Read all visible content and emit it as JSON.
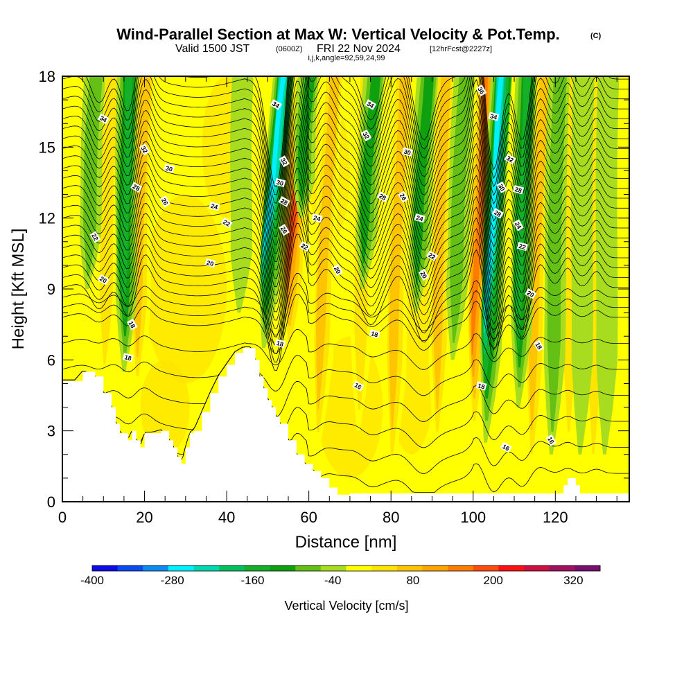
{
  "title": {
    "main": "Wind-Parallel Section at Max W: Vertical Velocity & Pot.Temp.",
    "copyright": "(C)",
    "valid_prefix": "Valid 1500 JST",
    "valid_utc": "(0600Z)",
    "valid_date": "FRI 22 Nov 2024",
    "forecast": "[12hrFcst@2227z]",
    "indices": "i,j,k,angle=92,59,24,99"
  },
  "colorbar": {
    "title": "Vertical Velocity [cm/s]",
    "tick_labels": [
      "-400",
      "-280",
      "-160",
      "-40",
      "80",
      "200",
      "320"
    ],
    "tick_values": [
      -400,
      -280,
      -160,
      -40,
      80,
      200,
      320
    ],
    "min": -400,
    "max": 360,
    "step": 40,
    "colors": [
      "#0c0ce8",
      "#0a4cf2",
      "#0a8ef5",
      "#00f0ff",
      "#00d8b0",
      "#00c060",
      "#14b028",
      "#0fa010",
      "#64c014",
      "#a8dc1e",
      "#ffff00",
      "#ffe400",
      "#ffc400",
      "#ffa500",
      "#ff7c00",
      "#ff4c0c",
      "#ff1010",
      "#cc1040",
      "#a01060",
      "#780e6e"
    ]
  },
  "chart_data": {
    "type": "heatmap",
    "description_of_fields": "shaded = vertical velocity (cm/s); contours = potential temperature",
    "xlabel": "Distance [nm]",
    "ylabel": "Height [Kft MSL]",
    "xlim": [
      0,
      138
    ],
    "ylim": [
      0,
      18
    ],
    "x_ticks": [
      0,
      20,
      40,
      60,
      80,
      100,
      120
    ],
    "y_ticks": [
      0,
      3,
      6,
      9,
      12,
      15,
      18
    ],
    "terrain": {
      "x": [
        0,
        3,
        5,
        8,
        10,
        12,
        13,
        14,
        16,
        17,
        18,
        19,
        20,
        22,
        24,
        26,
        27,
        28,
        29,
        30,
        31,
        32,
        34,
        36,
        38,
        40,
        42,
        44,
        46,
        47,
        48,
        49,
        50,
        51,
        52,
        53,
        55,
        57,
        59,
        61,
        63,
        65,
        67,
        69,
        70,
        72,
        80,
        90,
        100,
        110,
        121,
        122,
        123,
        124,
        125,
        126,
        128,
        130,
        138
      ],
      "height": [
        5.1,
        5.1,
        5.5,
        5.3,
        4.6,
        4.0,
        3.3,
        2.9,
        2.6,
        3.0,
        2.6,
        2.3,
        2.9,
        2.9,
        3.0,
        2.6,
        2.3,
        1.9,
        1.6,
        2.3,
        2.9,
        3.0,
        3.8,
        4.6,
        5.3,
        5.8,
        6.3,
        6.5,
        6.5,
        6.0,
        5.3,
        4.8,
        4.3,
        4.0,
        3.6,
        3.3,
        2.6,
        2.0,
        1.6,
        1.3,
        1.0,
        0.6,
        0.3,
        0.3,
        0.35,
        0.35,
        0.35,
        0.35,
        0.35,
        0.35,
        0.35,
        0.7,
        1.0,
        1.0,
        0.7,
        0.35,
        0.35,
        0.35,
        0.35
      ]
    },
    "updraft_bands": [
      {
        "x_top": 59,
        "x_bottom": 55,
        "z_top": 18,
        "z_bottom": 6.0,
        "peak_cm_s": 240
      },
      {
        "x_top": 103,
        "x_bottom": 100,
        "z_top": 18,
        "z_bottom": 2.5,
        "peak_cm_s": 200
      },
      {
        "x_top": 20,
        "x_bottom": 18,
        "z_top": 18,
        "z_bottom": 4.5,
        "peak_cm_s": 120
      },
      {
        "x_top": 12,
        "x_bottom": 10,
        "z_top": 18,
        "z_bottom": 5.0,
        "peak_cm_s": 100
      },
      {
        "x_top": 66,
        "x_bottom": 62,
        "z_top": 18,
        "z_bottom": 2.0,
        "peak_cm_s": 120
      },
      {
        "x_top": 83,
        "x_bottom": 80,
        "z_top": 18,
        "z_bottom": 1.0,
        "peak_cm_s": 140
      },
      {
        "x_top": 93,
        "x_bottom": 91,
        "z_top": 18,
        "z_bottom": 2.0,
        "peak_cm_s": 140
      },
      {
        "x_top": 117,
        "x_bottom": 114,
        "z_top": 18,
        "z_bottom": 1.0,
        "peak_cm_s": 130
      },
      {
        "x_top": 124,
        "x_bottom": 123,
        "z_top": 18,
        "z_bottom": 2.0,
        "peak_cm_s": 100
      },
      {
        "x_top": 130,
        "x_bottom": 129,
        "z_top": 18,
        "z_bottom": 1.0,
        "peak_cm_s": 100
      },
      {
        "x_top": 74,
        "x_bottom": 72,
        "z_top": 18,
        "z_bottom": 3.0,
        "peak_cm_s": 80
      }
    ],
    "downdraft_bands": [
      {
        "x_top": 54,
        "x_bottom": 49,
        "z_top": 18,
        "z_bottom": 6.5,
        "peak_cm_s": -280
      },
      {
        "x_top": 107,
        "x_bottom": 103,
        "z_top": 18,
        "z_bottom": 2.5,
        "peak_cm_s": -300
      },
      {
        "x_top": 113,
        "x_bottom": 111,
        "z_top": 18,
        "z_bottom": 4.0,
        "peak_cm_s": -160
      },
      {
        "x_top": 16,
        "x_bottom": 15,
        "z_top": 18,
        "z_bottom": 5.5,
        "peak_cm_s": -160
      },
      {
        "x_top": 8,
        "x_bottom": 6,
        "z_top": 18,
        "z_bottom": 9.0,
        "peak_cm_s": -100
      },
      {
        "x_top": 60,
        "x_bottom": 58,
        "z_top": 18,
        "z_bottom": 12.0,
        "peak_cm_s": -120
      },
      {
        "x_top": 76,
        "x_bottom": 73,
        "z_top": 18,
        "z_bottom": 9.0,
        "peak_cm_s": -120
      },
      {
        "x_top": 89,
        "x_bottom": 86,
        "z_top": 18,
        "z_bottom": 8.0,
        "peak_cm_s": -120
      },
      {
        "x_top": 121,
        "x_bottom": 119,
        "z_top": 18,
        "z_bottom": 2.0,
        "peak_cm_s": -80
      },
      {
        "x_top": 127,
        "x_bottom": 126,
        "z_top": 18,
        "z_bottom": 2.0,
        "peak_cm_s": -70
      },
      {
        "x_top": 133,
        "x_bottom": 132,
        "z_top": 18,
        "z_bottom": 2.0,
        "peak_cm_s": -70
      },
      {
        "x_top": 98,
        "x_bottom": 95,
        "z_top": 18,
        "z_bottom": 6.0,
        "peak_cm_s": -80
      },
      {
        "x_top": 44,
        "x_bottom": 43,
        "z_top": 18,
        "z_bottom": 8.0,
        "peak_cm_s": -60
      }
    ],
    "isentropes": {
      "levels": [
        16,
        18,
        20,
        22,
        24,
        26,
        28,
        30,
        32,
        34,
        36
      ],
      "spacing_low_kft": 1.0,
      "spacing_high_kft": 0.45,
      "labels": [
        {
          "text": "34",
          "x": 10,
          "z": 16.2
        },
        {
          "text": "32",
          "x": 20,
          "z": 14.9
        },
        {
          "text": "30",
          "x": 26,
          "z": 14.1
        },
        {
          "text": "28",
          "x": 18,
          "z": 13.3
        },
        {
          "text": "26",
          "x": 25,
          "z": 12.7
        },
        {
          "text": "24",
          "x": 37,
          "z": 12.5
        },
        {
          "text": "22",
          "x": 40,
          "z": 11.8
        },
        {
          "text": "22",
          "x": 8,
          "z": 11.2
        },
        {
          "text": "20",
          "x": 36,
          "z": 10.1
        },
        {
          "text": "20",
          "x": 10,
          "z": 9.4
        },
        {
          "text": "18",
          "x": 17,
          "z": 7.5
        },
        {
          "text": "18",
          "x": 16,
          "z": 6.1
        },
        {
          "text": "34",
          "x": 52,
          "z": 16.8
        },
        {
          "text": "32",
          "x": 54,
          "z": 14.4
        },
        {
          "text": "30",
          "x": 53,
          "z": 13.5
        },
        {
          "text": "28",
          "x": 54,
          "z": 12.7
        },
        {
          "text": "26",
          "x": 54,
          "z": 11.5
        },
        {
          "text": "24",
          "x": 62,
          "z": 12.0
        },
        {
          "text": "22",
          "x": 59,
          "z": 10.8
        },
        {
          "text": "20",
          "x": 67,
          "z": 9.8
        },
        {
          "text": "18",
          "x": 53,
          "z": 6.7
        },
        {
          "text": "34",
          "x": 75,
          "z": 16.8
        },
        {
          "text": "32",
          "x": 74,
          "z": 15.5
        },
        {
          "text": "30",
          "x": 84,
          "z": 14.8
        },
        {
          "text": "28",
          "x": 78,
          "z": 12.9
        },
        {
          "text": "26",
          "x": 83,
          "z": 12.9
        },
        {
          "text": "24",
          "x": 87,
          "z": 12.0
        },
        {
          "text": "22",
          "x": 90,
          "z": 10.4
        },
        {
          "text": "20",
          "x": 88,
          "z": 9.6
        },
        {
          "text": "18",
          "x": 76,
          "z": 7.1
        },
        {
          "text": "16",
          "x": 72,
          "z": 4.9
        },
        {
          "text": "36",
          "x": 102,
          "z": 17.4
        },
        {
          "text": "34",
          "x": 105,
          "z": 16.3
        },
        {
          "text": "32",
          "x": 109,
          "z": 14.5
        },
        {
          "text": "30",
          "x": 107,
          "z": 13.3
        },
        {
          "text": "28",
          "x": 111,
          "z": 13.2
        },
        {
          "text": "28",
          "x": 106,
          "z": 12.2
        },
        {
          "text": "24",
          "x": 111,
          "z": 11.7
        },
        {
          "text": "22",
          "x": 112,
          "z": 10.8
        },
        {
          "text": "20",
          "x": 114,
          "z": 8.8
        },
        {
          "text": "18",
          "x": 116,
          "z": 6.6
        },
        {
          "text": "18",
          "x": 102,
          "z": 4.9
        },
        {
          "text": "16",
          "x": 108,
          "z": 2.3
        },
        {
          "text": "16",
          "x": 119,
          "z": 2.6
        }
      ]
    }
  }
}
